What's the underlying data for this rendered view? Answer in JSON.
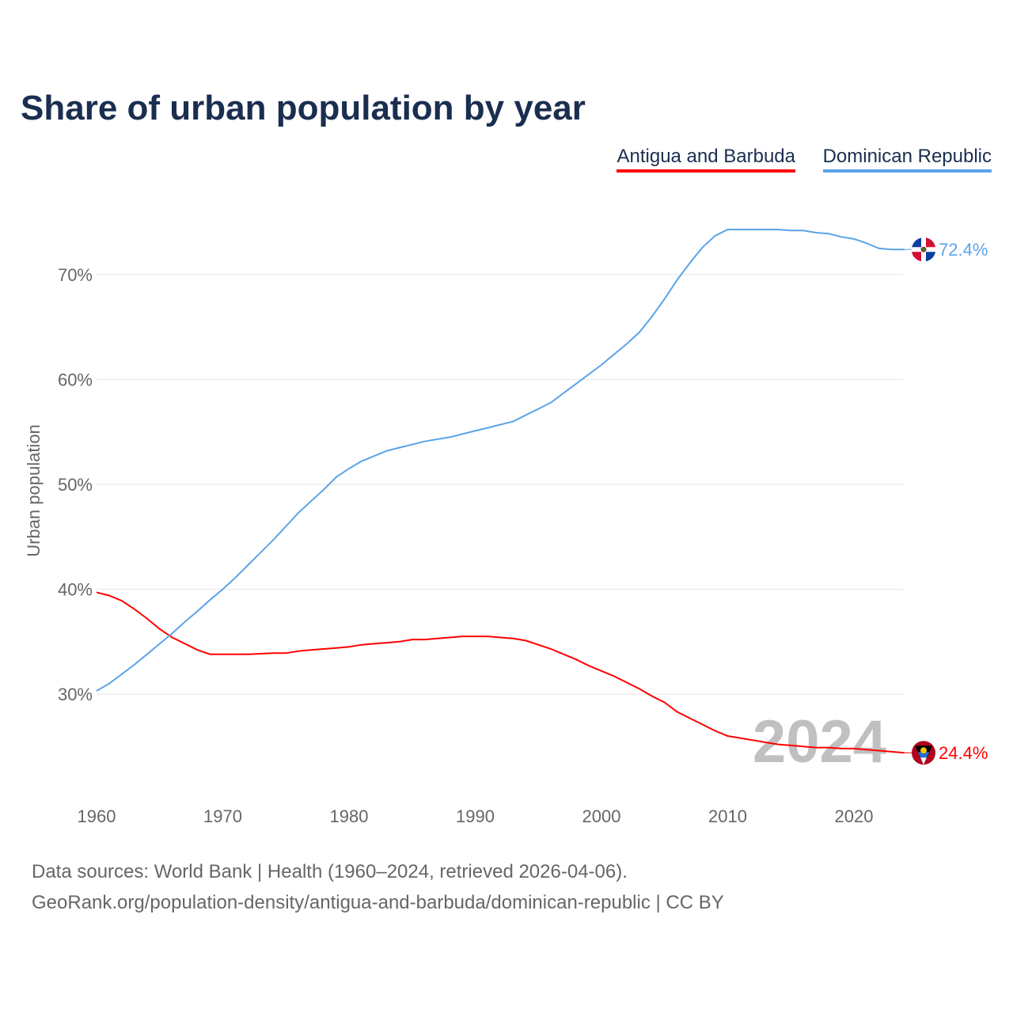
{
  "chart_data": {
    "type": "line",
    "title": "Share of urban population by year",
    "xlabel": "",
    "ylabel": "Urban population",
    "xlim": [
      1960,
      2024
    ],
    "ylim": [
      21,
      77
    ],
    "x_ticks": [
      1960,
      1970,
      1980,
      1990,
      2000,
      2010,
      2020
    ],
    "y_ticks": [
      30,
      40,
      50,
      60,
      70
    ],
    "y_tick_labels": [
      "30%",
      "40%",
      "50%",
      "60%",
      "70%"
    ],
    "grid": true,
    "legend_position": "top-right",
    "year_watermark": "2024",
    "x": [
      1960,
      1961,
      1962,
      1963,
      1964,
      1965,
      1966,
      1967,
      1968,
      1969,
      1970,
      1971,
      1972,
      1973,
      1974,
      1975,
      1976,
      1977,
      1978,
      1979,
      1980,
      1981,
      1982,
      1983,
      1984,
      1985,
      1986,
      1987,
      1988,
      1989,
      1990,
      1991,
      1992,
      1993,
      1994,
      1995,
      1996,
      1997,
      1998,
      1999,
      2000,
      2001,
      2002,
      2003,
      2004,
      2005,
      2006,
      2007,
      2008,
      2009,
      2010,
      2011,
      2012,
      2013,
      2014,
      2015,
      2016,
      2017,
      2018,
      2019,
      2020,
      2021,
      2022,
      2023,
      2024
    ],
    "series": [
      {
        "name": "Antigua and Barbuda",
        "color": "#ff0000",
        "end_label": "24.4%",
        "values": [
          39.7,
          39.4,
          38.9,
          38.1,
          37.2,
          36.2,
          35.4,
          34.8,
          34.2,
          33.8,
          33.8,
          33.8,
          33.8,
          33.85,
          33.9,
          33.9,
          34.1,
          34.2,
          34.3,
          34.4,
          34.5,
          34.7,
          34.8,
          34.9,
          35.0,
          35.2,
          35.2,
          35.3,
          35.4,
          35.5,
          35.5,
          35.5,
          35.4,
          35.3,
          35.1,
          34.7,
          34.3,
          33.8,
          33.3,
          32.7,
          32.2,
          31.7,
          31.1,
          30.5,
          29.8,
          29.2,
          28.3,
          27.7,
          27.1,
          26.5,
          26.0,
          25.8,
          25.6,
          25.4,
          25.2,
          25.1,
          25.0,
          24.9,
          24.9,
          24.8,
          24.8,
          24.7,
          24.6,
          24.5,
          24.4
        ]
      },
      {
        "name": "Dominican Republic",
        "color": "#5ba4e8",
        "end_label": "72.4%",
        "values": [
          30.3,
          31.0,
          31.9,
          32.8,
          33.8,
          34.8,
          35.8,
          36.9,
          37.9,
          39.0,
          40.0,
          41.1,
          42.3,
          43.5,
          44.7,
          46.0,
          47.3,
          48.4,
          49.5,
          50.7,
          51.5,
          52.2,
          52.7,
          53.2,
          53.5,
          53.8,
          54.1,
          54.3,
          54.5,
          54.8,
          55.1,
          55.4,
          55.7,
          56.0,
          56.6,
          57.2,
          57.8,
          58.7,
          59.6,
          60.5,
          61.4,
          62.4,
          63.4,
          64.5,
          66.0,
          67.7,
          69.5,
          71.1,
          72.6,
          73.7,
          74.3,
          74.3,
          74.3,
          74.3,
          74.3,
          74.2,
          74.2,
          74.0,
          73.9,
          73.6,
          73.4,
          73.0,
          72.5,
          72.4,
          72.4
        ]
      }
    ]
  },
  "footer": {
    "line1": "Data sources: World Bank | Health (1960–2024, retrieved 2026-04-06).",
    "line2": "GeoRank.org/population-density/antigua-and-barbuda/dominican-republic | CC BY"
  }
}
